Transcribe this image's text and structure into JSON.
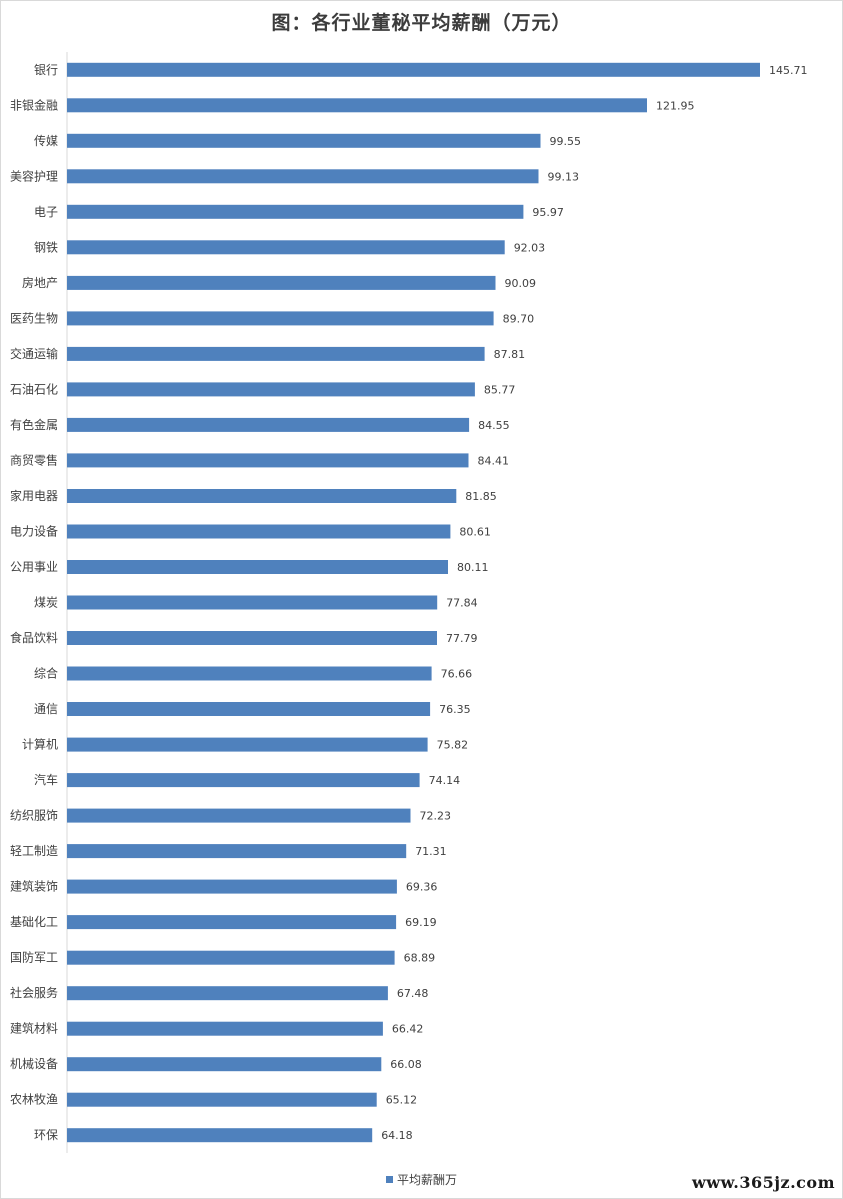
{
  "chart_data": {
    "type": "bar",
    "orientation": "horizontal",
    "title": "图：各行业董秘平均薪酬（万元）",
    "categories": [
      "银行",
      "非银金融",
      "传媒",
      "美容护理",
      "电子",
      "钢铁",
      "房地产",
      "医药生物",
      "交通运输",
      "石油石化",
      "有色金属",
      "商贸零售",
      "家用电器",
      "电力设备",
      "公用事业",
      "煤炭",
      "食品饮料",
      "综合",
      "通信",
      "计算机",
      "汽车",
      "纺织服饰",
      "轻工制造",
      "建筑装饰",
      "基础化工",
      "国防军工",
      "社会服务",
      "建筑材料",
      "机械设备",
      "农林牧渔",
      "环保"
    ],
    "series": [
      {
        "name": "平均薪酬万",
        "values": [
          145.71,
          121.95,
          99.55,
          99.13,
          95.97,
          92.03,
          90.09,
          89.7,
          87.81,
          85.77,
          84.55,
          84.41,
          81.85,
          80.61,
          80.11,
          77.84,
          77.79,
          76.66,
          76.35,
          75.82,
          74.14,
          72.23,
          71.31,
          69.36,
          69.19,
          68.89,
          67.48,
          66.42,
          66.08,
          65.12,
          64.18
        ],
        "value_labels": [
          "145.71",
          "121.95",
          "99.55",
          "99.13",
          "95.97",
          "92.03",
          "90.09",
          "89.70",
          "87.81",
          "85.77",
          "84.55",
          "84.41",
          "81.85",
          "80.61",
          "80.11",
          "77.84",
          "77.79",
          "76.66",
          "76.35",
          "75.82",
          "74.14",
          "72.23",
          "71.31",
          "69.36",
          "69.19",
          "68.89",
          "67.48",
          "66.42",
          "66.08",
          "65.12",
          "64.18"
        ]
      }
    ],
    "xlim": [
      0,
      150
    ],
    "grid": false,
    "legend": "bottom",
    "bar_color": "#4f81bd"
  },
  "legend_label": "平均薪酬万",
  "watermark": "www.365jz.com"
}
